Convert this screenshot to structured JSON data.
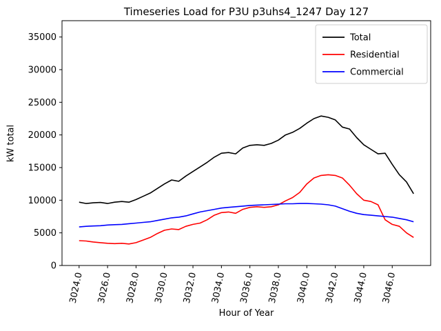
{
  "chart_data": {
    "type": "line",
    "title": "Timeseries Load for P3U p3uhs4_1247  Day 127",
    "xlabel": "Hour of Year",
    "ylabel": "kW total",
    "xlim": [
      3022.8,
      3048.7
    ],
    "ylim": [
      0,
      37500
    ],
    "xticks": [
      3024,
      3026,
      3028,
      3030,
      3032,
      3034,
      3036,
      3038,
      3040,
      3042,
      3044,
      3046
    ],
    "xticklabels": [
      "3024.0",
      "3026.0",
      "3028.0",
      "3030.0",
      "3032.0",
      "3034.0",
      "3036.0",
      "3038.0",
      "3040.0",
      "3042.0",
      "3044.0",
      "3046.0"
    ],
    "yticks": [
      0,
      5000,
      10000,
      15000,
      20000,
      25000,
      30000,
      35000
    ],
    "yticklabels": [
      "0",
      "5000",
      "10000",
      "15000",
      "20000",
      "25000",
      "30000",
      "35000"
    ],
    "grid": false,
    "legend": {
      "position": "upper right",
      "entries": [
        "Total",
        "Residential",
        "Commercial"
      ]
    },
    "x": [
      3024.0,
      3024.5,
      3025.0,
      3025.5,
      3026.0,
      3026.5,
      3027.0,
      3027.5,
      3028.0,
      3028.5,
      3029.0,
      3029.5,
      3030.0,
      3030.5,
      3031.0,
      3031.5,
      3032.0,
      3032.5,
      3033.0,
      3033.5,
      3034.0,
      3034.5,
      3035.0,
      3035.5,
      3036.0,
      3036.5,
      3037.0,
      3037.5,
      3038.0,
      3038.5,
      3039.0,
      3039.5,
      3040.0,
      3040.5,
      3041.0,
      3041.5,
      3042.0,
      3042.5,
      3043.0,
      3043.5,
      3044.0,
      3044.5,
      3045.0,
      3045.5,
      3046.0,
      3046.5,
      3047.0,
      3047.5
    ],
    "series": [
      {
        "name": "Total",
        "color": "#000000",
        "values": [
          9700,
          9500,
          9600,
          9650,
          9500,
          9700,
          9800,
          9700,
          10100,
          10600,
          11100,
          11800,
          12500,
          13100,
          12900,
          13700,
          14400,
          15100,
          15800,
          16600,
          17200,
          17300,
          17100,
          18000,
          18400,
          18500,
          18400,
          18700,
          19200,
          20000,
          20400,
          21000,
          21800,
          22500,
          22900,
          22700,
          22300,
          21200,
          20900,
          19600,
          18500,
          17800,
          17100,
          17200,
          15500,
          13900,
          12800,
          11000
        ]
      },
      {
        "name": "Residential",
        "color": "#ff0000",
        "values": [
          3800,
          3750,
          3600,
          3500,
          3400,
          3350,
          3400,
          3300,
          3500,
          3900,
          4300,
          4900,
          5400,
          5600,
          5500,
          6000,
          6300,
          6500,
          7000,
          7700,
          8100,
          8200,
          8000,
          8600,
          8900,
          9000,
          8900,
          9000,
          9300,
          9900,
          10400,
          11200,
          12500,
          13400,
          13800,
          13900,
          13800,
          13400,
          12300,
          11000,
          10000,
          9800,
          9300,
          7000,
          6300,
          6000,
          5000,
          4300
        ]
      },
      {
        "name": "Commercial",
        "color": "#0000ff",
        "values": [
          5900,
          6000,
          6050,
          6100,
          6200,
          6250,
          6300,
          6400,
          6500,
          6600,
          6700,
          6900,
          7100,
          7300,
          7400,
          7600,
          7900,
          8200,
          8400,
          8600,
          8800,
          8900,
          9000,
          9100,
          9200,
          9250,
          9300,
          9350,
          9400,
          9450,
          9450,
          9500,
          9500,
          9450,
          9400,
          9300,
          9100,
          8700,
          8300,
          8000,
          7800,
          7700,
          7600,
          7500,
          7400,
          7200,
          7000,
          6700
        ]
      }
    ]
  }
}
